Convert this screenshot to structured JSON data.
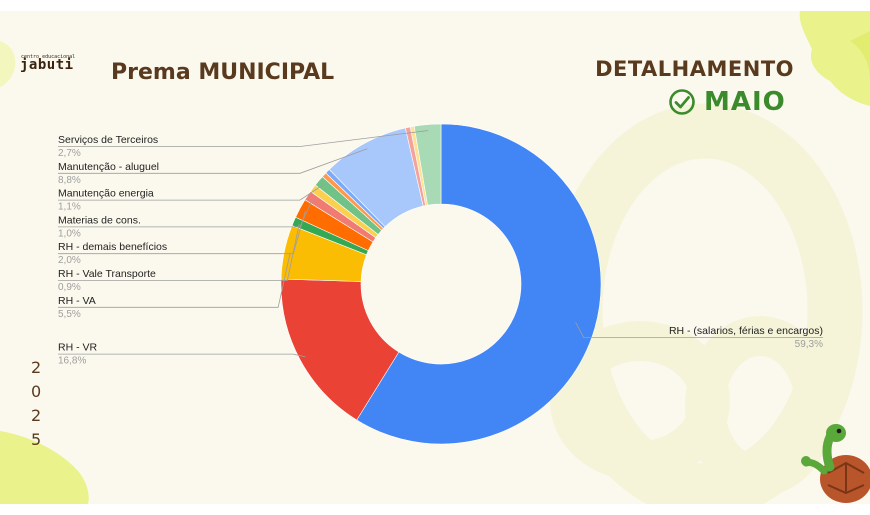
{
  "brand": {
    "name": "jabuti",
    "tagline": "centro educacional"
  },
  "header": {
    "title": "Prema MUNICIPAL",
    "detail_title": "DETALHAMENTO",
    "month": "MAIO"
  },
  "year_digits": [
    "2",
    "0",
    "2",
    "5"
  ],
  "colors": {
    "title_brown": "#5a3a1e",
    "accent_green": "#3b8a2b",
    "deco_yellow": "#eef39c",
    "background": "#fbf9ee"
  },
  "chart_data": {
    "type": "pie",
    "donut": true,
    "title": "",
    "slices": [
      {
        "label": "RH - (salarios, férias e encargos)",
        "value_label": "59,3%",
        "value": 59.3,
        "color": "#4285f4",
        "side": "right"
      },
      {
        "label": "RH - VR",
        "value_label": "16,8%",
        "value": 16.8,
        "color": "#ea4335",
        "side": "left"
      },
      {
        "label": "RH - VA",
        "value_label": "5,5%",
        "value": 5.5,
        "color": "#fbbc04",
        "side": "left"
      },
      {
        "label": "RH - Vale Transporte",
        "value_label": "0,9%",
        "value": 0.9,
        "color": "#34a853",
        "side": "left"
      },
      {
        "label": "RH - demais benefícios",
        "value_label": "2,0%",
        "value": 2.0,
        "color": "#ff6d01",
        "side": "left"
      },
      {
        "label": "Materias de cons.",
        "value_label": "1,0%",
        "value": 1.0,
        "color": "#f07b72",
        "side": "left"
      },
      {
        "label": "",
        "value_label": "",
        "value": 0.8,
        "color": "#fcd04f",
        "side": "none"
      },
      {
        "label": "Manutenção energia",
        "value_label": "1,1%",
        "value": 1.1,
        "color": "#71c287",
        "side": "left"
      },
      {
        "label": "",
        "value_label": "",
        "value": 0.5,
        "color": "#ff994d",
        "side": "none"
      },
      {
        "label": "",
        "value_label": "",
        "value": 0.5,
        "color": "#7baaf7",
        "side": "none"
      },
      {
        "label": "Manutenção - aluguel",
        "value_label": "8,8%",
        "value": 8.8,
        "color": "#a8c7fa",
        "side": "left"
      },
      {
        "label": "",
        "value_label": "",
        "value": 0.5,
        "color": "#f3a39c",
        "side": "none"
      },
      {
        "label": "",
        "value_label": "",
        "value": 0.4,
        "color": "#fde293",
        "side": "none"
      },
      {
        "label": "Serviços de Terceiros",
        "value_label": "2,7%",
        "value": 2.7,
        "color": "#a8dab5",
        "side": "left"
      }
    ]
  }
}
